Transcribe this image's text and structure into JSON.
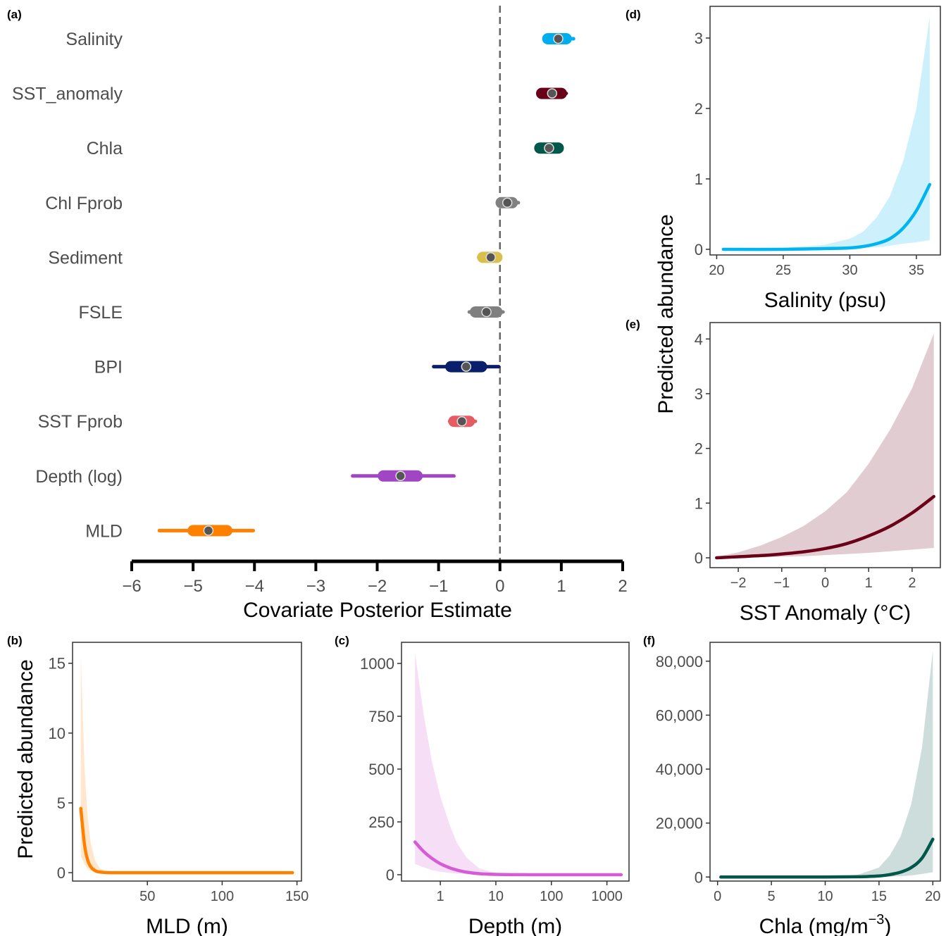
{
  "chart_data": [
    {
      "panel": "(a)",
      "type": "interval",
      "xlabel": "Covariate Posterior Estimate",
      "xlim": [
        -6,
        2
      ],
      "x_ticks": [
        "−6",
        "−5",
        "−4",
        "−3",
        "−2",
        "−1",
        "0",
        "1",
        "2"
      ],
      "reference_line": 0,
      "covariates": [
        {
          "label": "Salinity",
          "median": 0.95,
          "inner": [
            0.78,
            1.08
          ],
          "outer": [
            0.74,
            1.2
          ],
          "color": "#00AEEF"
        },
        {
          "label": "SST_anomaly",
          "median": 0.85,
          "inner": [
            0.68,
            1.0
          ],
          "outer": [
            0.64,
            1.08
          ],
          "color": "#6B0019"
        },
        {
          "label": "Chla",
          "median": 0.8,
          "inner": [
            0.65,
            0.95
          ],
          "outer": [
            0.6,
            1.0
          ],
          "color": "#00574A"
        },
        {
          "label": "Chl Fprob",
          "median": 0.12,
          "inner": [
            0.02,
            0.2
          ],
          "outer": [
            -0.03,
            0.3
          ],
          "color": "#808080"
        },
        {
          "label": "Sediment",
          "median": -0.15,
          "inner": [
            -0.28,
            -0.05
          ],
          "outer": [
            -0.35,
            0.0
          ],
          "color": "#D9C04D"
        },
        {
          "label": "FSLE",
          "median": -0.22,
          "inner": [
            -0.4,
            -0.05
          ],
          "outer": [
            -0.5,
            0.05
          ],
          "color": "#808080"
        },
        {
          "label": "BPI",
          "median": -0.55,
          "inner": [
            -0.8,
            -0.3
          ],
          "outer": [
            -1.08,
            -0.02
          ],
          "color": "#0A1F6B"
        },
        {
          "label": "SST Fprob",
          "median": -0.62,
          "inner": [
            -0.75,
            -0.5
          ],
          "outer": [
            -0.82,
            -0.4
          ],
          "color": "#E65C63"
        },
        {
          "label": "Depth (log)",
          "median": -1.62,
          "inner": [
            -1.9,
            -1.35
          ],
          "outer": [
            -2.4,
            -0.75
          ],
          "color": "#A045C4"
        },
        {
          "label": "MLD",
          "median": -4.75,
          "inner": [
            -5.0,
            -4.45
          ],
          "outer": [
            -5.55,
            -4.02
          ],
          "color": "#FF8000"
        }
      ]
    },
    {
      "panel": "(b)",
      "type": "line",
      "xlabel": "MLD (m)",
      "ylabel": "Predicted  abundance",
      "xlim": [
        0,
        153
      ],
      "ylim": [
        -0.6,
        16.5
      ],
      "x_ticks": [
        50,
        100,
        150
      ],
      "y_ticks": [
        0,
        5,
        10,
        15
      ],
      "color": "#FF8000",
      "x": [
        5.5,
        8,
        10,
        12,
        15,
        18,
        22,
        30,
        50,
        100,
        147
      ],
      "y": [
        4.6,
        2.0,
        0.95,
        0.45,
        0.15,
        0.05,
        0.01,
        0,
        0,
        0,
        0
      ],
      "lower": [
        1.2,
        0.6,
        0.3,
        0.12,
        0.04,
        0.01,
        0,
        0,
        0,
        0,
        0
      ],
      "upper": [
        15.6,
        7.5,
        4.2,
        2.2,
        0.9,
        0.35,
        0.1,
        0.02,
        0,
        0,
        0
      ]
    },
    {
      "panel": "(c)",
      "type": "line",
      "xscale": "log",
      "xlabel": "Depth (m)",
      "xlim": [
        0.2,
        2500
      ],
      "ylim": [
        -30,
        1100
      ],
      "x_ticks": [
        1,
        10,
        100,
        1000
      ],
      "x_tick_labels": [
        "1",
        "10",
        "100",
        "1000"
      ],
      "y_ticks": [
        0,
        250,
        500,
        750,
        1000
      ],
      "color": "#D65CD6",
      "x": [
        0.35,
        0.5,
        0.7,
        1,
        1.5,
        2,
        3,
        5,
        10,
        30,
        100,
        1800
      ],
      "y": [
        155,
        110,
        78,
        52,
        32,
        22,
        12,
        5,
        1.5,
        0.2,
        0,
        0
      ],
      "lower": [
        50,
        35,
        22,
        14,
        8,
        5,
        2.5,
        1,
        0.2,
        0,
        0,
        0
      ],
      "upper": [
        1050,
        760,
        540,
        370,
        230,
        150,
        80,
        30,
        8,
        1,
        0,
        0
      ]
    },
    {
      "panel": "(d)",
      "type": "line",
      "xlabel": "Salinity (psu)",
      "ylabel": "Predicted  abundance",
      "xlim": [
        19.5,
        36.8
      ],
      "ylim": [
        -0.08,
        3.45
      ],
      "x_ticks": [
        20,
        25,
        30,
        35
      ],
      "y_ticks": [
        0,
        1,
        2,
        3
      ],
      "color": "#00B4F0",
      "x": [
        20.5,
        25,
        28,
        30,
        31,
        32,
        33,
        34,
        35,
        36
      ],
      "y": [
        0,
        0,
        0.01,
        0.02,
        0.04,
        0.08,
        0.15,
        0.3,
        0.55,
        0.92
      ],
      "lower": [
        0,
        0,
        0,
        0.01,
        0.02,
        0.03,
        0.05,
        0.08,
        0.1,
        0.13
      ],
      "upper": [
        0,
        0.02,
        0.06,
        0.15,
        0.25,
        0.45,
        0.75,
        1.25,
        2.0,
        3.3
      ]
    },
    {
      "panel": "(e)",
      "type": "line",
      "xlabel": "SST Anomaly (°C)",
      "xlim": [
        -2.65,
        2.65
      ],
      "ylim": [
        -0.18,
        4.3
      ],
      "x_ticks": [
        -2,
        -1,
        0,
        1,
        2
      ],
      "x_tick_labels": [
        "−2",
        "−1",
        "0",
        "1",
        "2"
      ],
      "y_ticks": [
        0,
        1,
        2,
        3,
        4
      ],
      "color": "#6B0019",
      "x": [
        -2.5,
        -2,
        -1.5,
        -1,
        -0.5,
        0,
        0.5,
        1,
        1.5,
        2,
        2.5
      ],
      "y": [
        0.0,
        0.02,
        0.04,
        0.07,
        0.11,
        0.17,
        0.26,
        0.4,
        0.58,
        0.82,
        1.12
      ],
      "lower": [
        0.0,
        0.0,
        0.01,
        0.02,
        0.03,
        0.05,
        0.07,
        0.09,
        0.12,
        0.15,
        0.18
      ],
      "upper": [
        0.02,
        0.1,
        0.22,
        0.38,
        0.58,
        0.85,
        1.2,
        1.72,
        2.35,
        3.1,
        4.1
      ]
    },
    {
      "panel": "(f)",
      "type": "line",
      "xlabel": "Chla (mg/m",
      "xlabel_sup": "−3",
      "xlabel_tail": ")",
      "xlim": [
        -0.7,
        20.7
      ],
      "ylim": [
        -1500,
        87000
      ],
      "x_ticks": [
        0,
        5,
        10,
        15,
        20
      ],
      "y_ticks": [
        0,
        20000,
        40000,
        60000,
        80000
      ],
      "y_tick_labels": [
        "0",
        "20,000",
        "40,000",
        "60,000",
        "80,000"
      ],
      "color": "#00574A",
      "x": [
        0.3,
        5,
        10,
        13,
        15,
        16,
        17,
        18,
        19,
        20
      ],
      "y": [
        0,
        0,
        0,
        100,
        400,
        900,
        1800,
        3500,
        7000,
        14000
      ],
      "lower": [
        0,
        0,
        0,
        0,
        50,
        150,
        300,
        600,
        1100,
        1800
      ],
      "upper": [
        0,
        0,
        50,
        800,
        3500,
        8000,
        15000,
        27000,
        48000,
        84000
      ]
    }
  ],
  "panel_labels": {
    "a": "(a)",
    "b": "(b)",
    "c": "(c)",
    "d": "(d)",
    "e": "(e)",
    "f": "(f)"
  }
}
